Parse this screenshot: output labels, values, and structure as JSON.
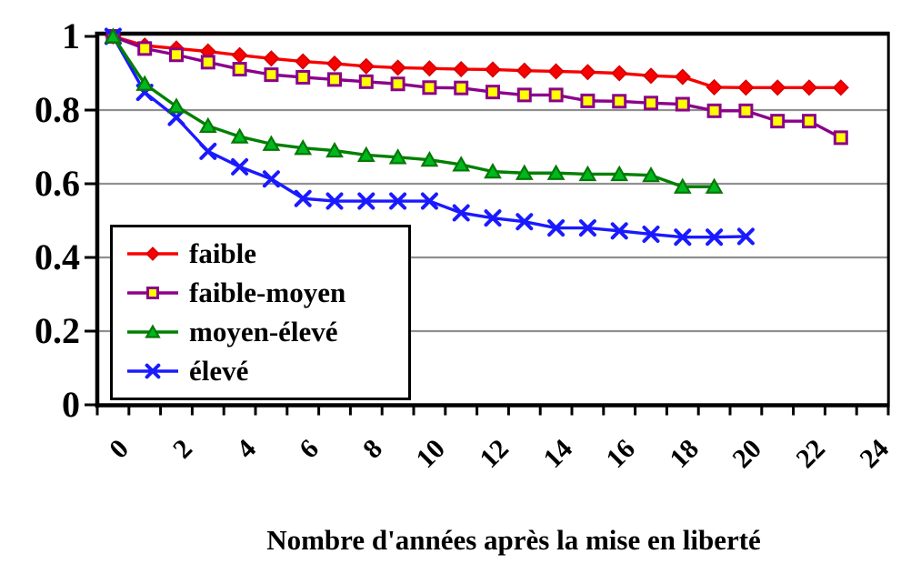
{
  "chart_data": {
    "type": "line",
    "title": "",
    "xlabel": "Nombre d'années après la mise en liberté",
    "ylabel": "",
    "x_start": 0,
    "x_step": 1,
    "x_range": [
      0,
      24
    ],
    "xticks": [
      0,
      2,
      4,
      6,
      8,
      10,
      12,
      14,
      16,
      18,
      20,
      22,
      24
    ],
    "xtick_labels": [
      "0",
      "2",
      "4",
      "6",
      "8",
      "10",
      "12",
      "14",
      "16",
      "18",
      "20",
      "22",
      "24"
    ],
    "ylim": [
      0,
      1
    ],
    "yticks": [
      1,
      0.8,
      0.6,
      0.4,
      0.2,
      0
    ],
    "ytick_labels": [
      "1",
      "0.8",
      "0.6",
      "0.4",
      "0.2",
      "0"
    ],
    "grid": "horizontal",
    "grid_color": "#909090",
    "axis_color": "#000000",
    "background_color": "#ffffff",
    "legend_position": "inside-lower-left",
    "series": [
      {
        "name": "faible",
        "color": "#f80000",
        "marker": "diamond",
        "marker_fill": "#f80000",
        "marker_stroke": "#d40000",
        "values": [
          1.0,
          0.975,
          0.967,
          0.959,
          0.949,
          0.94,
          0.932,
          0.926,
          0.919,
          0.915,
          0.913,
          0.911,
          0.91,
          0.907,
          0.905,
          0.903,
          0.9,
          0.893,
          0.89,
          0.862,
          0.861,
          0.861,
          0.861,
          0.861
        ]
      },
      {
        "name": "faible-moyen",
        "color": "#8b008b",
        "marker": "square",
        "marker_fill": "#ffff00",
        "marker_stroke": "#8b008b",
        "values": [
          1.0,
          0.967,
          0.95,
          0.93,
          0.911,
          0.896,
          0.889,
          0.883,
          0.877,
          0.871,
          0.861,
          0.86,
          0.849,
          0.841,
          0.841,
          0.825,
          0.824,
          0.819,
          0.816,
          0.798,
          0.798,
          0.77,
          0.77,
          0.725
        ]
      },
      {
        "name": "moyen-élevé",
        "color": "#008000",
        "marker": "triangle",
        "marker_fill": "#00b81e",
        "marker_stroke": "#067806",
        "values": [
          1.0,
          0.871,
          0.81,
          0.757,
          0.728,
          0.708,
          0.697,
          0.69,
          0.678,
          0.672,
          0.665,
          0.652,
          0.633,
          0.629,
          0.629,
          0.626,
          0.626,
          0.623,
          0.592,
          0.592
        ]
      },
      {
        "name": "élevé",
        "color": "#1a1aff",
        "marker": "x",
        "marker_fill": "#1a1aff",
        "marker_stroke": "#1a1aff",
        "values": [
          1.0,
          0.848,
          0.78,
          0.688,
          0.646,
          0.613,
          0.56,
          0.553,
          0.553,
          0.553,
          0.553,
          0.521,
          0.507,
          0.497,
          0.48,
          0.48,
          0.472,
          0.463,
          0.455,
          0.455,
          0.457
        ]
      }
    ]
  }
}
